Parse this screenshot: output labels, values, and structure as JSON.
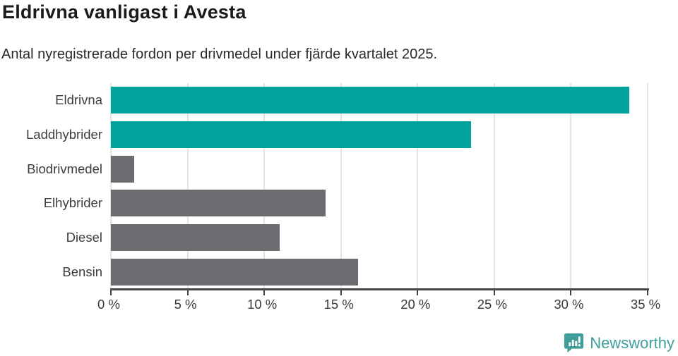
{
  "header": {
    "title": "Eldrivna vanligast i Avesta",
    "subtitle": "Antal nyregistrerade fordon per drivmedel under fjärde kvartalet 2025."
  },
  "chart_data": {
    "type": "bar",
    "orientation": "horizontal",
    "title": "Eldrivna vanligast i Avesta",
    "subtitle": "Antal nyregistrerade fordon per drivmedel under fjärde kvartalet 2025.",
    "categories": [
      "Eldrivna",
      "Laddhybrider",
      "Biodrivmedel",
      "Elhybrider",
      "Diesel",
      "Bensin"
    ],
    "values": [
      33.8,
      23.5,
      1.5,
      14.0,
      11.0,
      16.1
    ],
    "unit": "%",
    "bar_colors": [
      "#00a49c",
      "#00a49c",
      "#6b6b70",
      "#6b6b70",
      "#6b6b70",
      "#6b6b70"
    ],
    "xlim": [
      0,
      35
    ],
    "x_ticks": [
      0,
      5,
      10,
      15,
      20,
      25,
      30,
      35
    ],
    "x_tick_labels": [
      "0 %",
      "5 %",
      "10 %",
      "15 %",
      "20 %",
      "25 %",
      "30 %",
      "35 %"
    ],
    "grid": true,
    "legend": "none"
  },
  "colors": {
    "accent_teal": "#00a49c",
    "neutral_gray": "#6b6b70",
    "gridline": "#e4e4e4",
    "axis": "#454545",
    "brand_teal": "#3f9e9a"
  },
  "footer": {
    "brand": "Newsworthy",
    "logo_icon": "speech-bubble-bar-chart-icon"
  }
}
